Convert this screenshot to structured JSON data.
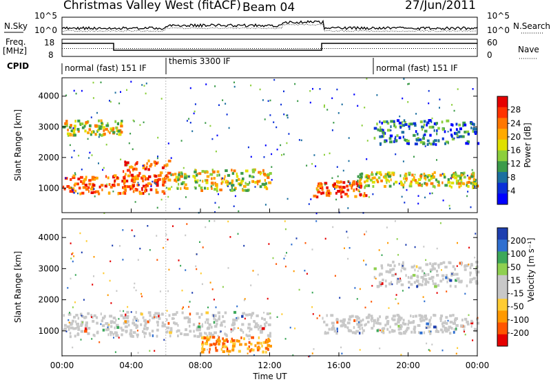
{
  "header": {
    "title": "Christmas Valley West (fitACF)",
    "beam": "Beam 04",
    "date": "27/Jun/2011"
  },
  "panels": {
    "nsky": {
      "label": "N.Sky",
      "ticks_left": [
        "10^5",
        "10^0"
      ],
      "ticks_right": [
        "10^5",
        "10^0"
      ],
      "right_label": "N.Search"
    },
    "freq": {
      "label_line1": "Freq.",
      "label_line2": "[MHz]",
      "ticks_left": [
        "18",
        "8"
      ],
      "ticks_right": [
        "60",
        "0"
      ],
      "right_label": "Nave"
    },
    "cpid": {
      "label": "CPID",
      "modes": [
        {
          "text": "normal (fast) 151 IF",
          "start_hour": 0
        },
        {
          "text": "themis 3300 IF",
          "start_hour": 6
        },
        {
          "text": "normal (fast) 151 IF",
          "start_hour": 18
        }
      ]
    }
  },
  "chart_data": [
    {
      "type": "heatmap",
      "name": "Power",
      "ylabel": "Slant Range [km]",
      "yticks": [
        1000,
        2000,
        3000,
        4000
      ],
      "ylim": [
        200,
        4600
      ],
      "xlim_hours": [
        0,
        24
      ],
      "colorbar": {
        "label": "Power [dB]",
        "ticks": [
          "28",
          "24",
          "20",
          "16",
          "12",
          "8",
          "4"
        ],
        "colors": [
          "#e60000",
          "#ff3300",
          "#ff7700",
          "#ffaa00",
          "#e0e000",
          "#8ccf3c",
          "#3c9b4a",
          "#1c6fa0",
          "#0a2fd8",
          "#0000ff"
        ]
      },
      "features": [
        {
          "hours": [
            0,
            6
          ],
          "range_km": [
            800,
            1400
          ],
          "level": "high"
        },
        {
          "hours": [
            3.5,
            6.2
          ],
          "range_km": [
            1200,
            1900
          ],
          "level": "high"
        },
        {
          "hours": [
            0,
            3.5
          ],
          "range_km": [
            2700,
            3200
          ],
          "level": "medium"
        },
        {
          "hours": [
            6,
            12
          ],
          "range_km": [
            900,
            1600
          ],
          "level": "medium"
        },
        {
          "hours": [
            14.5,
            17.5
          ],
          "range_km": [
            700,
            1200
          ],
          "level": "high"
        },
        {
          "hours": [
            17,
            24
          ],
          "range_km": [
            1000,
            1500
          ],
          "level": "medium"
        },
        {
          "hours": [
            18,
            24
          ],
          "range_km": [
            2400,
            3200
          ],
          "level": "low"
        }
      ]
    },
    {
      "type": "heatmap",
      "name": "Velocity",
      "ylabel": "Slant Range [km]",
      "xlabel": "Time UT",
      "yticks": [
        1000,
        2000,
        3000,
        4000
      ],
      "ylim": [
        200,
        4600
      ],
      "xlim_hours": [
        0,
        24
      ],
      "xticks": [
        "00:00",
        "04:00",
        "08:00",
        "12:00",
        "16:00",
        "20:00",
        "00:00"
      ],
      "colorbar": {
        "label": "Velocity [m s⁻¹]",
        "ticks": [
          "200",
          "100",
          "50",
          "15",
          "-15",
          "-50",
          "-100",
          "-200"
        ],
        "colors": [
          "#1e3fb0",
          "#2f6fd0",
          "#3da85a",
          "#8fd050",
          "#c8c8c8",
          "#c8c8c8",
          "#ffcc33",
          "#ff9900",
          "#ff5500",
          "#e60000"
        ]
      },
      "features": [
        {
          "hours": [
            0,
            12
          ],
          "range_km": [
            800,
            1600
          ],
          "level": "near-zero (gray)"
        },
        {
          "hours": [
            8,
            12
          ],
          "range_km": [
            300,
            800
          ],
          "level": "negative (orange)"
        },
        {
          "hours": [
            15,
            24
          ],
          "range_km": [
            900,
            1500
          ],
          "level": "near-zero (gray)"
        },
        {
          "hours": [
            18,
            24
          ],
          "range_km": [
            2400,
            3200
          ],
          "level": "near-zero (gray)"
        }
      ]
    }
  ]
}
